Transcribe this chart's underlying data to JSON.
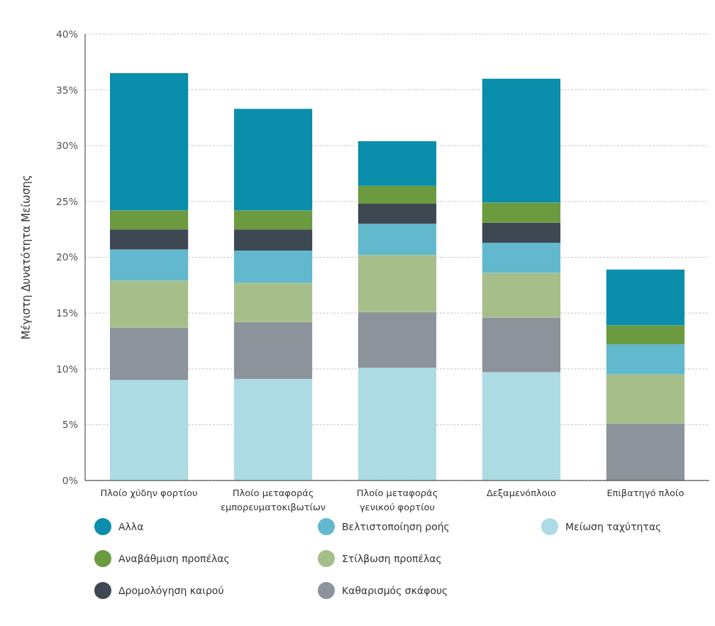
{
  "chart_data": {
    "type": "bar",
    "stacked": true,
    "ylabel": "Μέγιστη Δυνατότητα Μείωσης",
    "categories": [
      "Πλοίο χύδην φορτίου",
      "Πλοίο μεταφοράς εμπορευματοκιβωτίων",
      "Πλοίο μεταφοράς γενικού φορτίου",
      "Δεξαμενόπλοιο",
      "Επιβατηγό πλοίο"
    ],
    "series": [
      {
        "name": "Μείωση ταχύτητας",
        "color": "#addbe3",
        "values": [
          9.0,
          9.1,
          10.1,
          9.7,
          0
        ]
      },
      {
        "name": "Καθαρισμός σκάφους",
        "color": "#8c939b",
        "values": [
          4.7,
          5.1,
          5.0,
          4.9,
          5.1
        ]
      },
      {
        "name": "Στίλβωση προπέλας",
        "color": "#a6bf8a",
        "values": [
          4.2,
          3.5,
          5.1,
          4.0,
          4.4
        ]
      },
      {
        "name": "Βελτιστοποίηση ροής",
        "color": "#62b8cc",
        "values": [
          2.8,
          2.9,
          2.8,
          2.7,
          2.7
        ]
      },
      {
        "name": "Δρομολόγηση καιρού",
        "color": "#3d4852",
        "values": [
          1.8,
          1.9,
          1.8,
          1.8,
          0
        ]
      },
      {
        "name": "Αναβάθμιση προπέλας",
        "color": "#6b9a3f",
        "values": [
          1.7,
          1.7,
          1.6,
          1.8,
          1.7
        ]
      },
      {
        "name": "Αλλα",
        "color": "#0a8eab",
        "values": [
          12.3,
          9.1,
          4.0,
          11.1,
          5.0
        ]
      }
    ],
    "ylim": [
      0,
      40
    ],
    "yticks": [
      {
        "value": 0,
        "label": "0%"
      },
      {
        "value": 5,
        "label": "5%"
      },
      {
        "value": 10,
        "label": "10%"
      },
      {
        "value": 15,
        "label": "15%"
      },
      {
        "value": 20,
        "label": "20%"
      },
      {
        "value": 25,
        "label": "25%"
      },
      {
        "value": 30,
        "label": "30%"
      },
      {
        "value": 35,
        "label": "35%"
      },
      {
        "value": 40,
        "label": "40%"
      }
    ],
    "grid": "y",
    "legend": "bottom"
  }
}
